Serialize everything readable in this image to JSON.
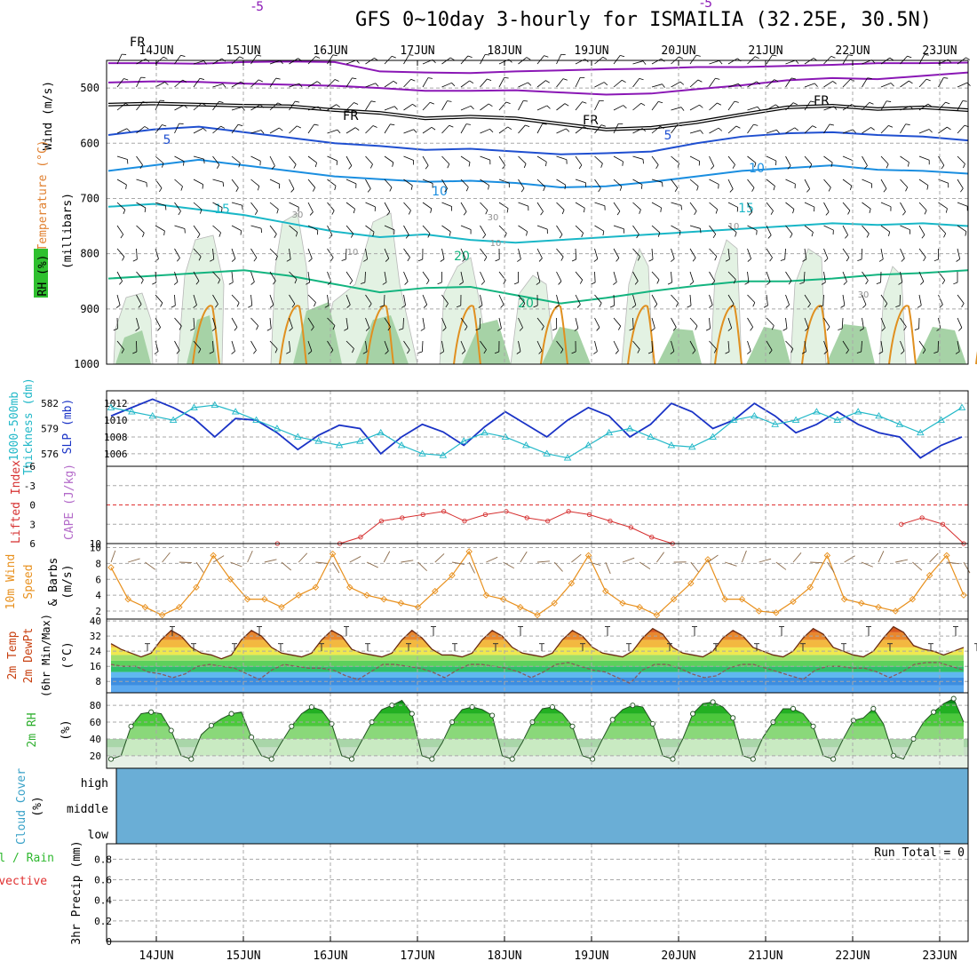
{
  "chart_data": {
    "type": "meteogram",
    "title": "GFS 0~10day 3-hourly for ISMAILIA (32.25E, 30.5N)",
    "dates": [
      "14JUN",
      "15JUN",
      "16JUN",
      "17JUN",
      "18JUN",
      "19JUN",
      "20JUN",
      "21JUN",
      "22JUN",
      "23JUN"
    ],
    "colors": {
      "purple": "#8a17b5",
      "black": "#000000",
      "blue5": "#1f4fd0",
      "blue10": "#1a8ee0",
      "teal15": "#19b7c7",
      "green20": "#13b47f",
      "orange": "#e09020",
      "rh_light": "#e3f2e3",
      "rh_mid": "#a6d2a6",
      "rh_dark": "#6aa06a",
      "slp": "#1a33c6",
      "thickness": "#22b8c8",
      "li": "#d63030",
      "cape_zero": "#e03030",
      "wind_speed": "#e8901d",
      "barb": "#8a6a4a",
      "cloud": "#6aaed6",
      "grid": "#a8a8a8"
    },
    "panels": {
      "upper_air": {
        "labels": [
          "Wind (m/s)",
          "Temperature (°C)",
          "RH (%)",
          "(millibars)"
        ],
        "yticks": [
          500,
          600,
          700,
          800,
          900,
          1000
        ],
        "ylim": [
          450,
          1000
        ],
        "contours": [
          {
            "label": "-5",
            "color": "purple",
            "levels": [
              455,
              455,
              456,
              453,
              452,
              453,
              470,
              472,
              473,
              470,
              468,
              466,
              465,
              462,
              462,
              460,
              458,
              455,
              455,
              454
            ]
          },
          {
            "label": "-5",
            "color": "purple",
            "levels": [
              490,
              488,
              489,
              492,
              494,
              496,
              500,
              505,
              505,
              504,
              508,
              512,
              510,
              502,
              495,
              486,
              482,
              484,
              478,
              472
            ]
          },
          {
            "label": "FR",
            "color": "black",
            "levels": [
              530,
              528,
              530,
              532,
              533,
              540,
              545,
              555,
              552,
              555,
              565,
              575,
              572,
              562,
              548,
              535,
              532,
              538,
              535,
              540
            ]
          },
          {
            "label": "5",
            "color": "blue5",
            "levels": [
              585,
              575,
              570,
              580,
              590,
              600,
              605,
              612,
              610,
              615,
              620,
              618,
              615,
              600,
              588,
              582,
              580,
              585,
              588,
              595
            ]
          },
          {
            "label": "10",
            "color": "blue10",
            "levels": [
              650,
              640,
              630,
              640,
              650,
              660,
              665,
              670,
              668,
              672,
              680,
              678,
              670,
              660,
              650,
              645,
              640,
              648,
              650,
              655
            ]
          },
          {
            "label": "15",
            "color": "teal15",
            "levels": [
              715,
              710,
              720,
              730,
              745,
              760,
              770,
              765,
              775,
              780,
              775,
              770,
              765,
              760,
              755,
              750,
              745,
              748,
              745,
              750
            ]
          },
          {
            "label": "20",
            "color": "green20",
            "levels": [
              845,
              840,
              835,
              830,
              840,
              855,
              870,
              862,
              860,
              875,
              890,
              880,
              868,
              858,
              850,
              850,
              845,
              838,
              835,
              830
            ]
          }
        ],
        "contour_texts": [
          "30",
          "10",
          "30",
          "10",
          "10",
          "30",
          "10",
          "30",
          "15",
          "20"
        ]
      },
      "slp_thickness": {
        "labels": [
          "1000-500mb Thickness (dm)",
          "SLP (mb)"
        ],
        "thickness_ticks": [
          576,
          579,
          582
        ],
        "slp_ticks": [
          1006,
          1008,
          1010,
          1012
        ],
        "slp": [
          1010.5,
          1011.5,
          1012.5,
          1011.5,
          1010.2,
          1008.0,
          1010.2,
          1010.0,
          1008.5,
          1006.5,
          1008.2,
          1009.4,
          1009.0,
          1006.0,
          1008.0,
          1009.5,
          1008.6,
          1007.0,
          1009.2,
          1011.0,
          1009.5,
          1008.0,
          1010.0,
          1011.5,
          1010.5,
          1008.0,
          1009.5,
          1012.0,
          1011.0,
          1009.0,
          1010.0,
          1012.0,
          1010.5,
          1008.5,
          1009.5,
          1011.0,
          1009.5,
          1008.5,
          1008.0,
          1005.5,
          1007.0,
          1008.0
        ],
        "thickness": [
          581.5,
          581.0,
          580.5,
          580.0,
          581.5,
          581.8,
          581.0,
          580.0,
          579.0,
          578.0,
          577.5,
          577.0,
          577.5,
          578.5,
          577.0,
          576.0,
          575.8,
          577.5,
          578.5,
          578.0,
          577.0,
          576.0,
          575.5,
          577.0,
          578.5,
          579.0,
          578.0,
          577.0,
          576.8,
          578.0,
          580.0,
          580.5,
          579.5,
          580.0,
          581.0,
          580.0,
          581.0,
          580.5,
          579.5,
          578.5,
          580.0,
          581.5
        ]
      },
      "cape_li": {
        "labels": [
          "Lifted Index",
          "CAPE (J/kg)"
        ],
        "li_ticks": [
          -6,
          -3,
          0,
          3,
          6
        ],
        "cape_ticks": [
          10
        ],
        "li": [
          null,
          null,
          null,
          null,
          null,
          null,
          null,
          null,
          6.0,
          null,
          null,
          6.0,
          5.0,
          2.5,
          2.0,
          1.5,
          1.0,
          2.5,
          1.5,
          1.0,
          2.0,
          2.5,
          1.0,
          1.5,
          2.5,
          3.5,
          5.0,
          6.0,
          null,
          null,
          null,
          null,
          null,
          null,
          null,
          null,
          null,
          null,
          3.0,
          2.0,
          3.0,
          6.0
        ]
      },
      "wind10m": {
        "labels": [
          "10m Wind Speed & Barbs",
          "(m/s)"
        ],
        "yticks": [
          2,
          4,
          6,
          8,
          10
        ],
        "speed": [
          7.5,
          3.5,
          2.5,
          1.5,
          2.5,
          5.0,
          9.0,
          6.0,
          3.5,
          3.5,
          2.5,
          4.0,
          5.0,
          9.2,
          5.0,
          4.0,
          3.5,
          3.0,
          2.5,
          4.5,
          6.5,
          9.5,
          4.0,
          3.5,
          2.5,
          1.5,
          3.0,
          5.5,
          9.0,
          4.5,
          3.0,
          2.5,
          1.5,
          3.5,
          5.5,
          8.5,
          3.5,
          3.5,
          2.0,
          1.8,
          3.2,
          5.0,
          9.0,
          3.5,
          3.0,
          2.5,
          2.0,
          3.5,
          6.5,
          9.0,
          4.0
        ]
      },
      "temp2m": {
        "labels": [
          "2m Temp",
          "2m DewPt",
          "(6hr Min/Max)",
          "(°C)"
        ],
        "yticks": [
          8,
          16,
          24,
          32,
          40
        ],
        "temp": [
          28,
          25,
          23,
          21,
          23,
          30,
          35,
          32,
          26,
          23,
          22,
          20,
          22,
          30,
          35,
          32,
          26,
          23,
          22,
          21,
          23,
          30,
          35,
          32,
          25,
          23,
          22,
          21,
          23,
          30,
          35,
          31,
          25,
          22,
          22,
          21,
          23,
          30,
          35,
          32,
          26,
          23,
          22,
          21,
          23,
          30,
          35,
          32,
          26,
          23,
          22,
          21,
          24,
          31,
          36,
          33,
          26,
          23,
          22,
          21,
          24,
          31,
          35,
          32,
          26,
          24,
          22,
          21,
          24,
          31,
          36,
          33,
          26,
          24,
          22,
          21,
          24,
          31,
          37,
          34,
          27,
          25,
          24,
          22,
          24,
          26
        ],
        "dewpt": [
          17,
          16,
          16,
          13,
          12,
          10,
          12,
          16,
          17,
          16,
          15,
          12,
          9,
          14,
          17,
          16,
          15,
          15,
          14,
          11,
          9,
          13,
          17,
          17,
          16,
          15,
          13,
          10,
          14,
          17,
          17,
          16,
          15,
          13,
          10,
          13,
          17,
          18,
          16,
          14,
          13,
          10,
          7,
          14,
          17,
          17,
          15,
          12,
          10,
          11,
          15,
          17,
          17,
          15,
          13,
          11,
          9,
          14,
          16,
          16,
          15,
          15,
          13,
          10,
          13,
          17,
          18,
          18,
          16,
          14
        ]
      },
      "rh2m": {
        "labels": [
          "2m RH",
          "(%)"
        ],
        "yticks": [
          20,
          40,
          60,
          80
        ],
        "rh": [
          16,
          20,
          55,
          70,
          72,
          70,
          50,
          20,
          16,
          45,
          56,
          64,
          70,
          72,
          42,
          20,
          16,
          36,
          55,
          70,
          78,
          74,
          58,
          20,
          16,
          38,
          60,
          75,
          80,
          86,
          70,
          20,
          16,
          35,
          60,
          75,
          78,
          75,
          68,
          20,
          16,
          36,
          60,
          76,
          78,
          70,
          55,
          20,
          16,
          40,
          63,
          75,
          80,
          78,
          58,
          20,
          16,
          40,
          70,
          82,
          84,
          78,
          65,
          20,
          16,
          42,
          60,
          76,
          76,
          70,
          55,
          20,
          16,
          40,
          62,
          65,
          76,
          58,
          20,
          16,
          40,
          60,
          72,
          82,
          88,
          60
        ]
      },
      "cloud": {
        "labels": [
          "Cloud Cover",
          "(%)"
        ],
        "levels": [
          "high",
          "middle",
          "low"
        ]
      },
      "precip": {
        "labels": [
          "Total / Rain",
          "Convective",
          "3hr Precip (mm)"
        ],
        "yticks": [
          0,
          0.2,
          0.4,
          0.6,
          0.8
        ],
        "run_total": "Run Total = 0"
      }
    }
  }
}
